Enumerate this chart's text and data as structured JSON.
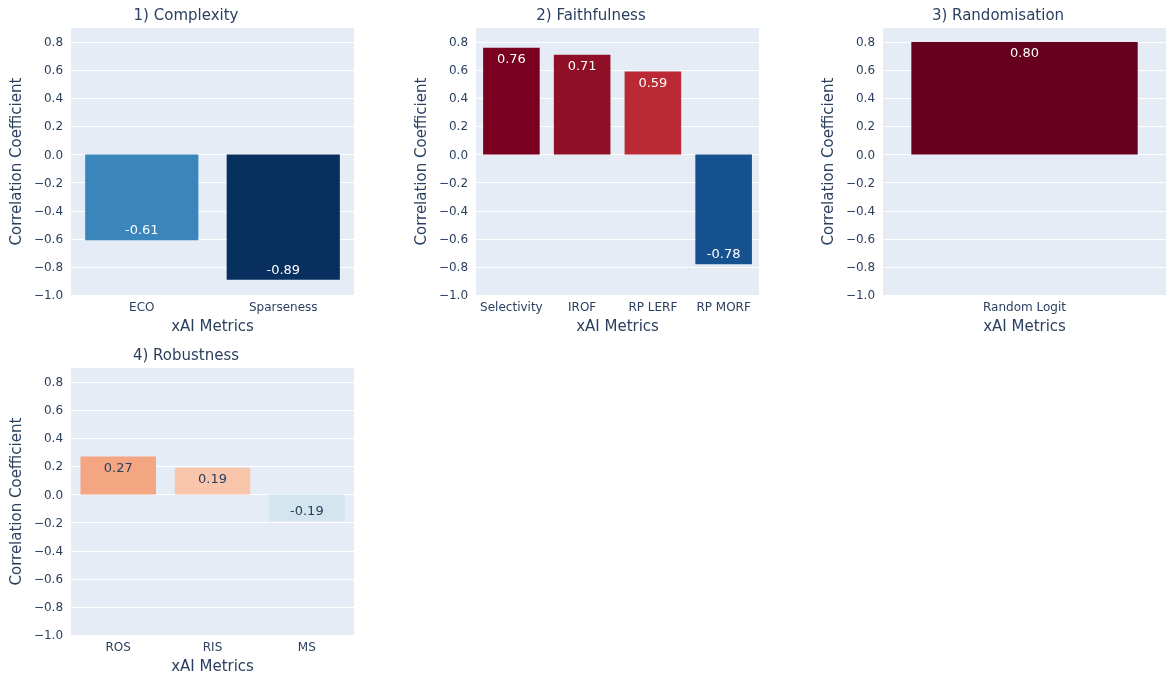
{
  "chart_data": [
    {
      "type": "bar",
      "title": "1) Complexity",
      "xlabel": "xAI Metrics",
      "ylabel": "Correlation Coefficient",
      "categories": [
        "ECO",
        "Sparseness"
      ],
      "values": [
        -0.61,
        -0.89
      ],
      "colors": [
        "#3a85bc",
        "#08305e"
      ],
      "value_labels": [
        "-0.61",
        "-0.89"
      ],
      "ylim": [
        -1,
        0.9
      ],
      "yticks": [
        {
          "value": -1,
          "label": "−1.0"
        },
        {
          "value": -0.8,
          "label": "−0.8"
        },
        {
          "value": -0.6,
          "label": "−0.6"
        },
        {
          "value": -0.4,
          "label": "−0.4"
        },
        {
          "value": -0.2,
          "label": "−0.2"
        },
        {
          "value": 0,
          "label": "0.0"
        },
        0.2,
        0.4,
        0.6,
        0.8
      ],
      "grid": "y"
    },
    {
      "type": "bar",
      "title": "2) Faithfulness",
      "xlabel": "xAI Metrics",
      "ylabel": "Correlation Coefficient",
      "categories": [
        "Selectivity",
        "IROF",
        "RP LERF",
        "RP MORF"
      ],
      "values": [
        0.76,
        0.71,
        0.59,
        -0.78
      ],
      "colors": [
        "#7a0022",
        "#8e0f26",
        "#bb2a34",
        "#175290"
      ],
      "value_labels": [
        "0.76",
        "0.71",
        "0.59",
        "-0.78"
      ],
      "ylim": [
        -1,
        0.9
      ],
      "yticks": [
        {
          "value": -1,
          "label": "−1.0"
        },
        {
          "value": -0.8,
          "label": "−0.8"
        },
        {
          "value": -0.6,
          "label": "−0.6"
        },
        {
          "value": -0.4,
          "label": "−0.4"
        },
        {
          "value": -0.2,
          "label": "−0.2"
        },
        {
          "value": 0,
          "label": "0.0"
        },
        0.2,
        0.4,
        0.6,
        0.8
      ],
      "grid": "y"
    },
    {
      "type": "bar",
      "title": "3) Randomisation",
      "xlabel": "xAI Metrics",
      "ylabel": "Correlation Coefficient",
      "categories": [
        "Random Logit"
      ],
      "values": [
        0.8
      ],
      "colors": [
        "#67001f"
      ],
      "value_labels": [
        "0.80"
      ],
      "ylim": [
        -1,
        0.9
      ],
      "yticks": [
        {
          "value": -1,
          "label": "−1.0"
        },
        {
          "value": -0.8,
          "label": "−0.8"
        },
        {
          "value": -0.6,
          "label": "−0.6"
        },
        {
          "value": -0.4,
          "label": "−0.4"
        },
        {
          "value": -0.2,
          "label": "−0.2"
        },
        {
          "value": 0,
          "label": "0.0"
        },
        0.2,
        0.4,
        0.6,
        0.8
      ],
      "grid": "y"
    },
    {
      "type": "bar",
      "title": "4) Robustness",
      "xlabel": "xAI Metrics",
      "ylabel": "Correlation Coefficient",
      "categories": [
        "ROS",
        "RIS",
        "MS"
      ],
      "values": [
        0.27,
        0.19,
        -0.19
      ],
      "colors": [
        "#f4a582",
        "#f9c5ab",
        "#d3e5ef"
      ],
      "value_labels": [
        "0.27",
        "0.19",
        "-0.19"
      ],
      "ylim": [
        -1,
        0.9
      ],
      "yticks": [
        {
          "value": -1,
          "label": "−1.0"
        },
        {
          "value": -0.8,
          "label": "−0.8"
        },
        {
          "value": -0.6,
          "label": "−0.6"
        },
        {
          "value": -0.4,
          "label": "−0.4"
        },
        {
          "value": -0.2,
          "label": "−0.2"
        },
        {
          "value": 0,
          "label": "0.0"
        },
        0.2,
        0.4,
        0.6,
        0.8
      ],
      "grid": "y"
    }
  ]
}
